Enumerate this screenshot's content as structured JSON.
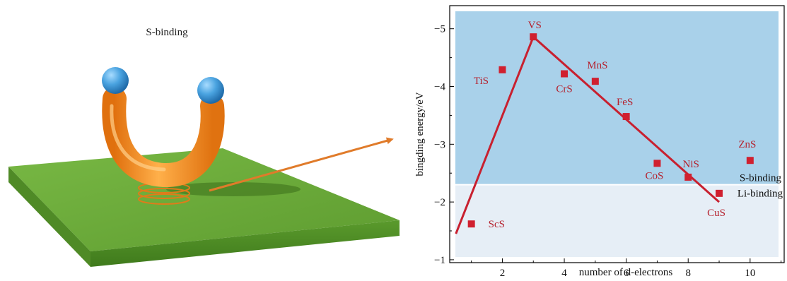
{
  "illustration": {
    "caption": "S-binding",
    "colors": {
      "substrate_top": "#6aa838",
      "substrate_side": "#4f8a26",
      "molecule": "#f08a1c",
      "atom": "#4aa3e0",
      "arrow": "#e07b2a"
    }
  },
  "chart_data": {
    "type": "scatter",
    "xlabel": "number of d-electrons",
    "ylabel": "bingding energy/eV",
    "xlim": [
      0.3,
      11.1
    ],
    "ylim": [
      -0.95,
      -5.4
    ],
    "y_inverted": true,
    "xticks": [
      2,
      4,
      6,
      8,
      10
    ],
    "yticks": [
      -1,
      -2,
      -3,
      -4,
      -5
    ],
    "ytick_labels": [
      "−1",
      "−2",
      "−3",
      "−4",
      "−5"
    ],
    "points": [
      {
        "label": "ScS",
        "x": 1,
        "y": -1.62
      },
      {
        "label": "TiS",
        "x": 2,
        "y": -4.29
      },
      {
        "label": "VS",
        "x": 3,
        "y": -4.86
      },
      {
        "label": "CrS",
        "x": 4,
        "y": -4.22
      },
      {
        "label": "MnS",
        "x": 5,
        "y": -4.09
      },
      {
        "label": "FeS",
        "x": 6,
        "y": -3.48
      },
      {
        "label": "CoS",
        "x": 7,
        "y": -2.67
      },
      {
        "label": "NiS",
        "x": 8,
        "y": -2.43
      },
      {
        "label": "CuS",
        "x": 9,
        "y": -2.15
      },
      {
        "label": "ZnS",
        "x": 10,
        "y": -2.72
      }
    ],
    "trend_line": [
      {
        "x": 0.5,
        "y": -1.45
      },
      {
        "x": 3.0,
        "y": -4.86
      },
      {
        "x": 9.0,
        "y": -2.0
      }
    ],
    "regions": [
      {
        "label": "S-binding",
        "y_from": -5.4,
        "y_to": -2.3,
        "color": "#a9d1ea"
      },
      {
        "label": "Li-binding",
        "y_from": -2.3,
        "y_to": -0.95,
        "color": "#e6eef6"
      }
    ],
    "colors": {
      "marker": "#d0202f",
      "line": "#c8202f",
      "label": "#b5202c",
      "axis": "#000000"
    }
  }
}
